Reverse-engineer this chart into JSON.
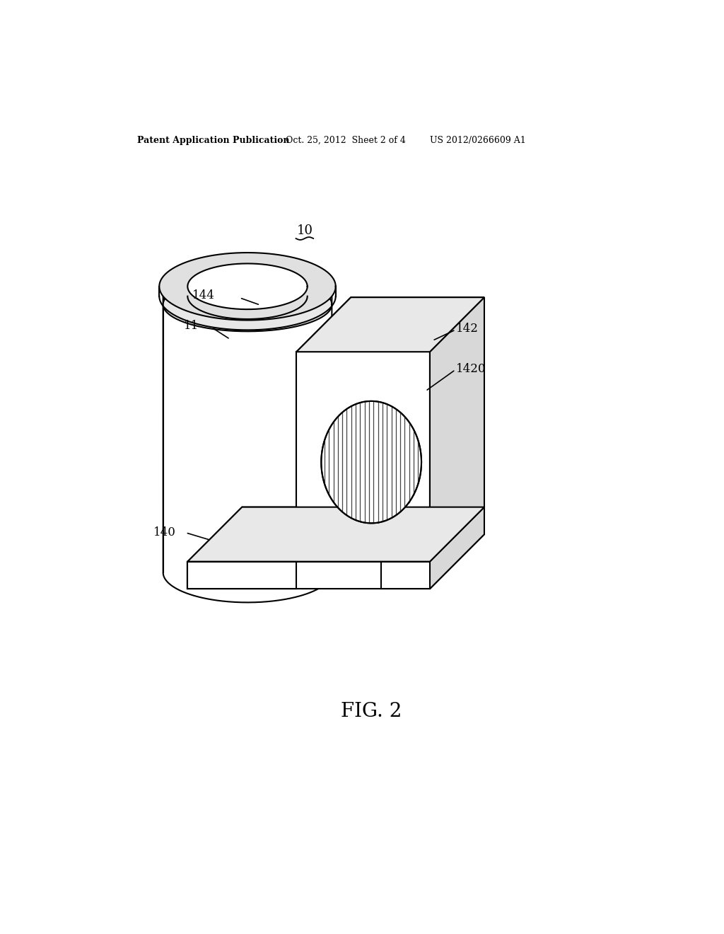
{
  "header_left": "Patent Application Publication",
  "header_mid": "Oct. 25, 2012  Sheet 2 of 4",
  "header_right": "US 2012/0266609 A1",
  "figure_label": "FIG. 2",
  "ref_10": "10",
  "ref_11": "11",
  "ref_140": "140",
  "ref_142": "142",
  "ref_144": "144",
  "ref_1420": "1420",
  "bg_color": "#ffffff",
  "line_color": "#000000",
  "lw": 1.5,
  "lw_thin": 0.8,
  "shade_top": "#e8e8e8",
  "shade_right": "#d8d8d8",
  "shade_white": "#ffffff",
  "vent_stripe_color": "#444444"
}
